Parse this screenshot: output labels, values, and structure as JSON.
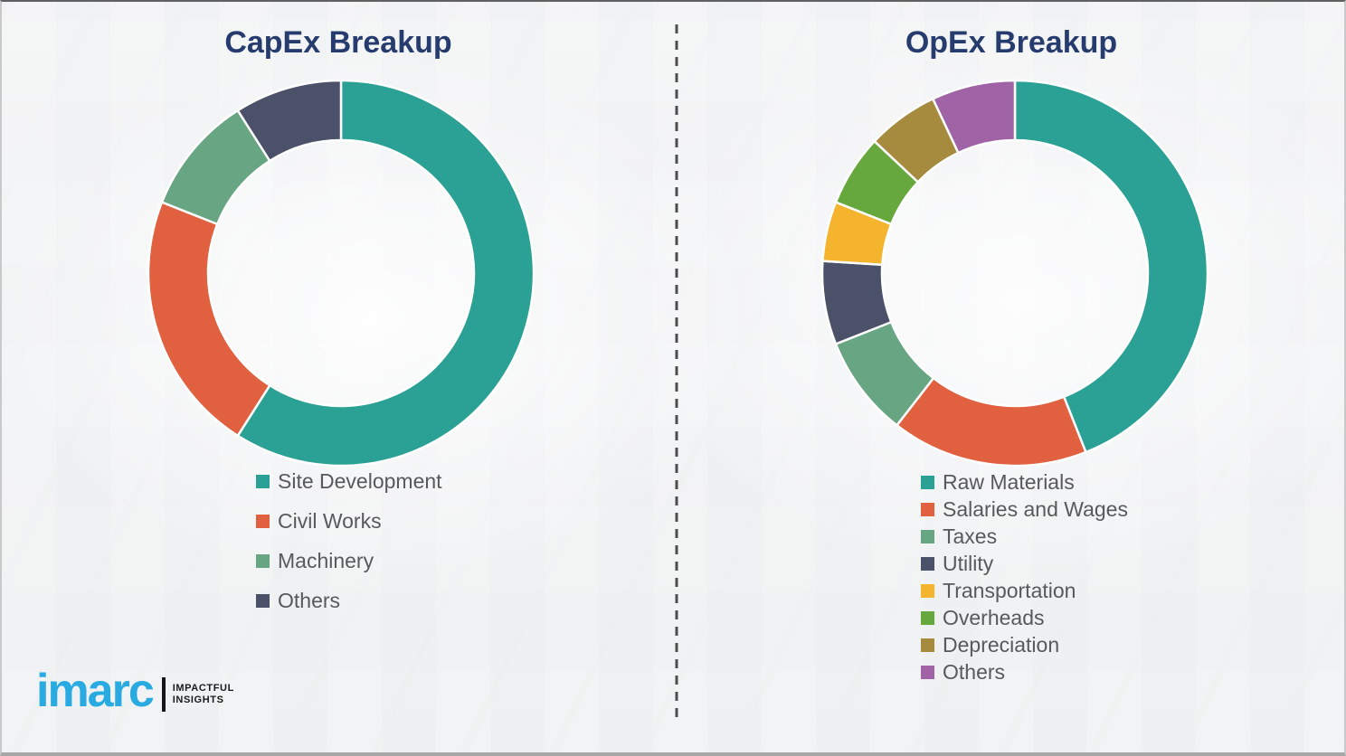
{
  "branding": {
    "logo_text": "imarc",
    "tagline_line1": "IMPACTFUL",
    "tagline_line2": "INSIGHTS",
    "logo_color": "#29ABE2",
    "tagline_color": "#1A1A1A"
  },
  "divider": {
    "orientation": "vertical",
    "style": "dashed",
    "color": "#4D4D4D"
  },
  "palette": {
    "title_navy": "#273C6E",
    "legend_text_gray": "#58595B",
    "background": "#F1F2F3"
  },
  "chart_data": [
    {
      "type": "pie",
      "subtype": "donut",
      "title": "CapEx Breakup",
      "legend_position": "below-left",
      "labels": [
        "Site Development",
        "Civil Works",
        "Machinery",
        "Others"
      ],
      "values": [
        59,
        22,
        10,
        9
      ],
      "values_note": "percent shares estimated from arc angles; no numeric labels shown in image",
      "colors": [
        "#2AA194",
        "#E0603F",
        "#68A583",
        "#4A5168"
      ],
      "start_angle_deg": 0,
      "direction": "clockwise"
    },
    {
      "type": "pie",
      "subtype": "donut",
      "title": "OpEx Breakup",
      "legend_position": "below-left",
      "labels": [
        "Raw Materials",
        "Salaries and Wages",
        "Taxes",
        "Utility",
        "Transportation",
        "Overheads",
        "Depreciation",
        "Others"
      ],
      "values": [
        44,
        16.5,
        8.5,
        7,
        5,
        6,
        6,
        7
      ],
      "values_note": "percent shares estimated from arc angles; no numeric labels shown in image",
      "colors": [
        "#2AA194",
        "#E0603F",
        "#68A583",
        "#4A5168",
        "#F4B42E",
        "#66A83E",
        "#A68A3E",
        "#9F63A6"
      ],
      "start_angle_deg": 0,
      "direction": "clockwise"
    }
  ]
}
